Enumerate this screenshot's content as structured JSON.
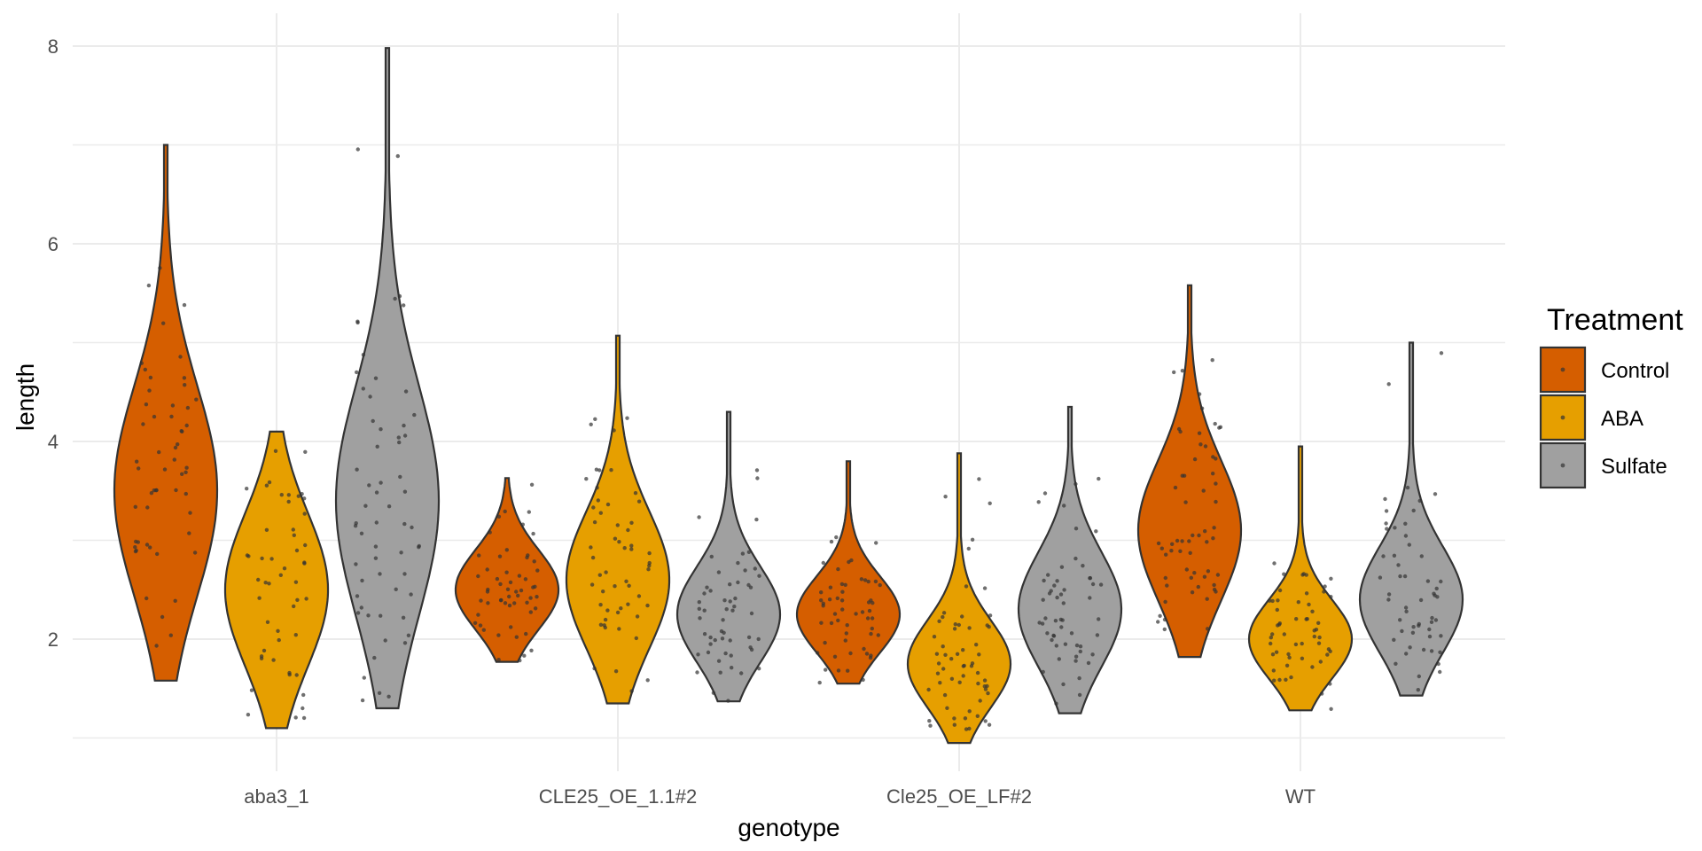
{
  "chart_data": {
    "type": "violin",
    "xlabel": "genotype",
    "ylabel": "length",
    "categories": [
      "aba3_1",
      "CLE25_OE_1.1#2",
      "Cle25_OE_LF#2",
      "WT"
    ],
    "y_ticks": [
      2,
      4,
      6,
      8
    ],
    "ylim": [
      0.7,
      8.3
    ],
    "grid": true,
    "jitter_points": true,
    "legend": {
      "title": "Treatment",
      "position": "right",
      "items": [
        {
          "label": "Control",
          "color": "#D55E00"
        },
        {
          "label": "ABA",
          "color": "#E69F00"
        },
        {
          "label": "Sulfate",
          "color": "#A0A0A0"
        }
      ]
    },
    "series": [
      {
        "name": "Control",
        "color": "#D55E00",
        "violins": [
          {
            "category": "aba3_1",
            "min": 1.58,
            "max": 7.0,
            "median": 3.5,
            "n": 55
          },
          {
            "category": "CLE25_OE_1.1#2",
            "min": 1.77,
            "max": 3.63,
            "median": 2.5,
            "n": 55
          },
          {
            "category": "Cle25_OE_LF#2",
            "min": 1.55,
            "max": 3.8,
            "median": 2.25,
            "n": 55
          },
          {
            "category": "WT",
            "min": 1.82,
            "max": 5.58,
            "median": 3.1,
            "n": 60
          }
        ]
      },
      {
        "name": "ABA",
        "color": "#E69F00",
        "violins": [
          {
            "category": "aba3_1",
            "min": 1.1,
            "max": 4.1,
            "median": 2.5,
            "n": 50
          },
          {
            "category": "CLE25_OE_1.1#2",
            "min": 1.35,
            "max": 5.07,
            "median": 2.6,
            "n": 55
          },
          {
            "category": "Cle25_OE_LF#2",
            "min": 0.95,
            "max": 3.88,
            "median": 1.75,
            "n": 60
          },
          {
            "category": "WT",
            "min": 1.28,
            "max": 3.95,
            "median": 2.0,
            "n": 55
          }
        ]
      },
      {
        "name": "Sulfate",
        "color": "#A0A0A0",
        "violins": [
          {
            "category": "aba3_1",
            "min": 1.3,
            "max": 7.98,
            "median": 3.4,
            "n": 60
          },
          {
            "category": "CLE25_OE_1.1#2",
            "min": 1.37,
            "max": 4.3,
            "median": 2.25,
            "n": 55
          },
          {
            "category": "Cle25_OE_LF#2",
            "min": 1.25,
            "max": 4.35,
            "median": 2.3,
            "n": 55
          },
          {
            "category": "WT",
            "min": 1.43,
            "max": 5.0,
            "median": 2.4,
            "n": 55
          }
        ]
      }
    ]
  }
}
